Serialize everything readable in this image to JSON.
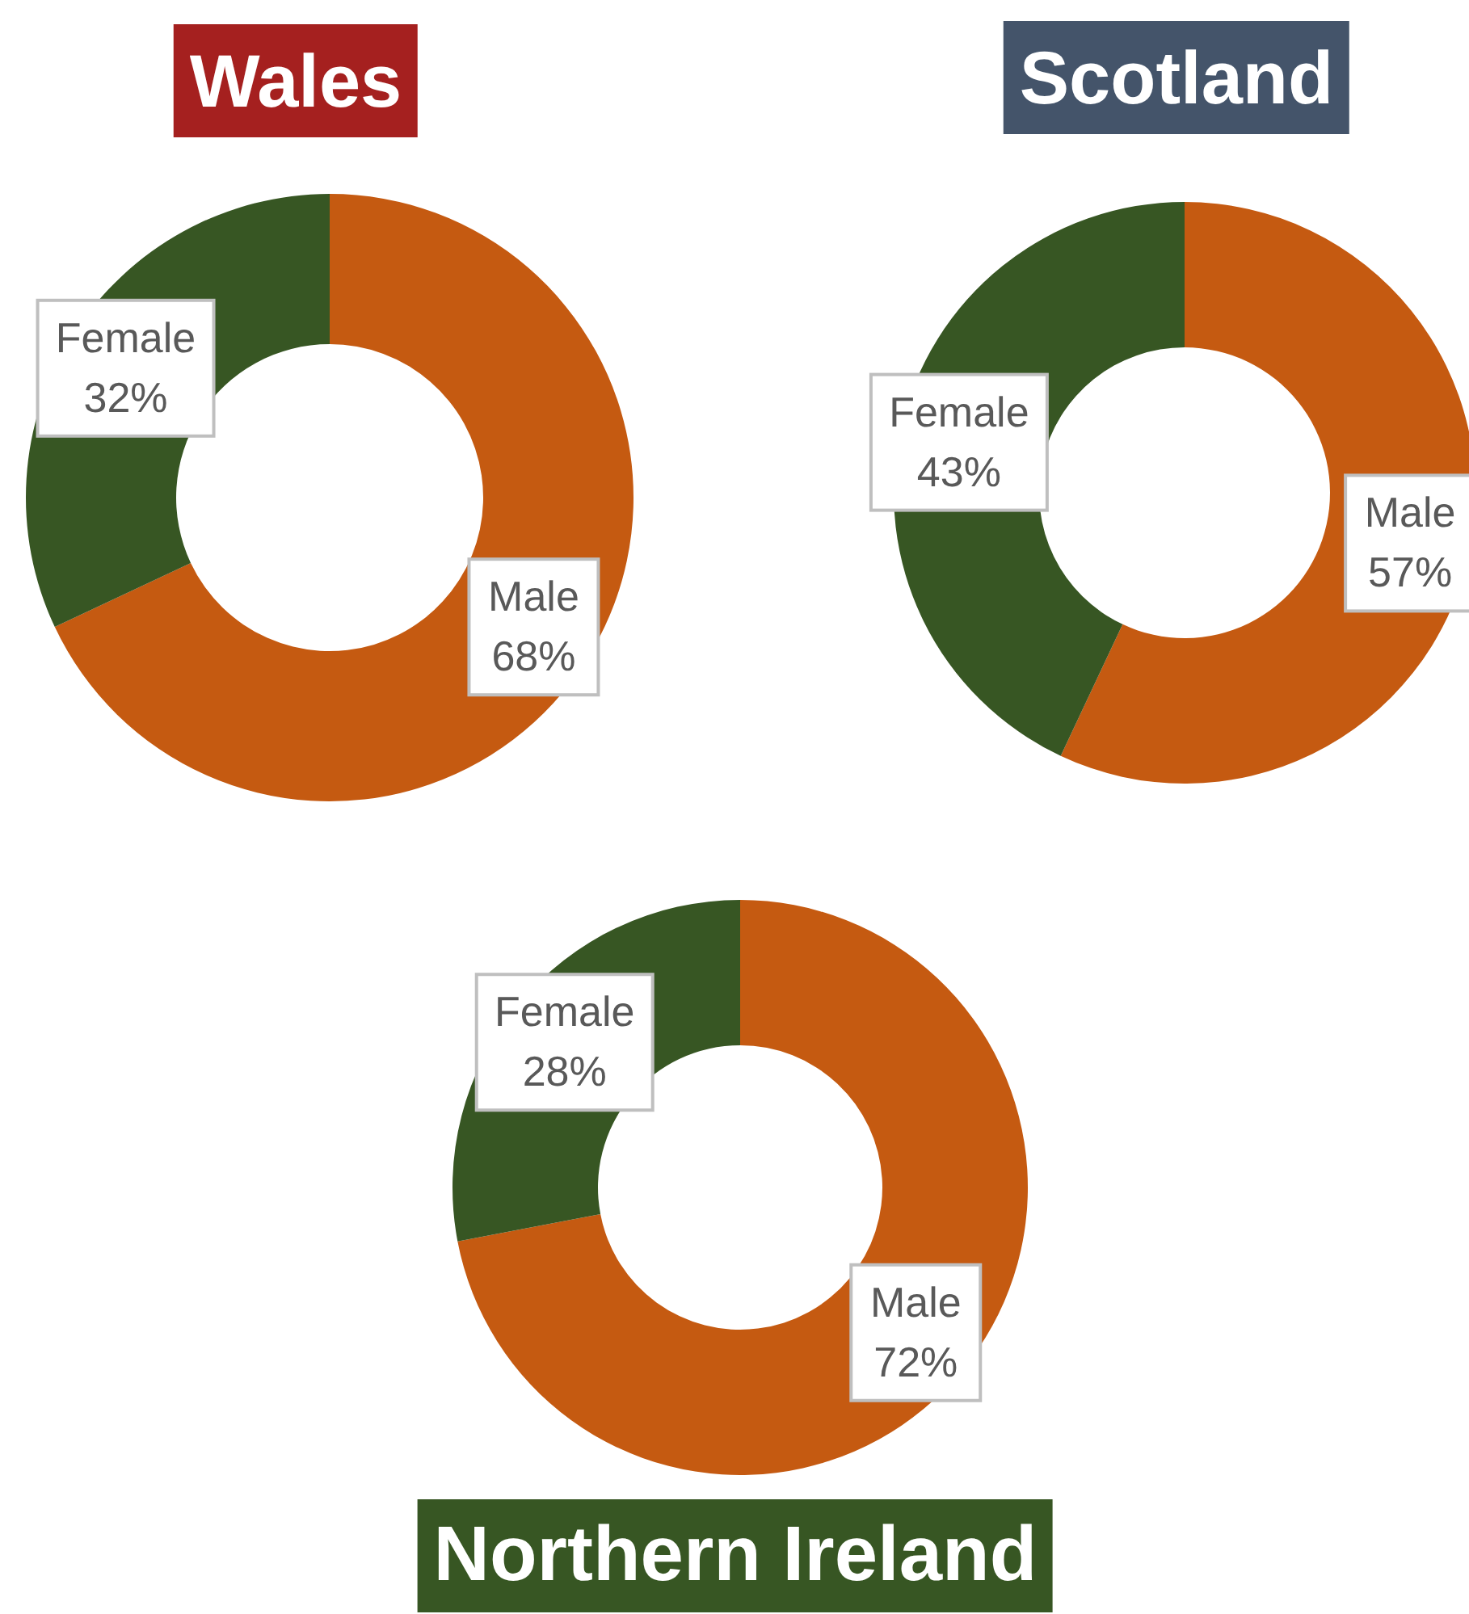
{
  "chart_data": [
    {
      "type": "donut",
      "title": "Wales",
      "categories": [
        "Male",
        "Female"
      ],
      "values": [
        68,
        32
      ],
      "colors": [
        "#c55a11",
        "#375623"
      ],
      "value_labels": [
        "68%",
        "32%"
      ]
    },
    {
      "type": "donut",
      "title": "Scotland",
      "categories": [
        "Male",
        "Female"
      ],
      "values": [
        57,
        43
      ],
      "colors": [
        "#c55a11",
        "#375623"
      ],
      "value_labels": [
        "57%",
        "43%"
      ]
    },
    {
      "type": "donut",
      "title": "Northern Ireland",
      "categories": [
        "Male",
        "Female"
      ],
      "values": [
        72,
        28
      ],
      "colors": [
        "#c55a11",
        "#375623"
      ],
      "value_labels": [
        "72%",
        "28%"
      ]
    }
  ]
}
